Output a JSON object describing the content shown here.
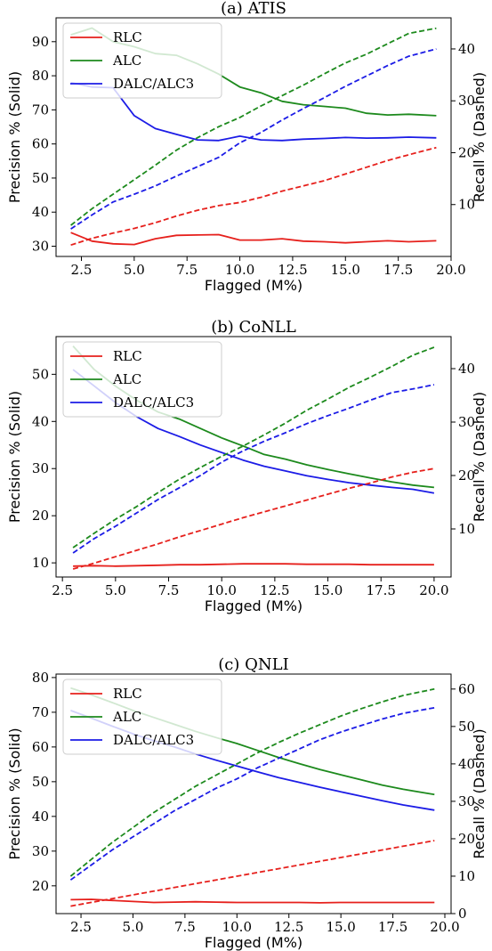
{
  "chart_data": [
    {
      "type": "line",
      "title": "(a) ATIS",
      "xlabel": "Flagged (M%)",
      "ylabel_left": "Precision % (Solid)",
      "ylabel_right": "Recall % (Dashed)",
      "xlim": [
        1.3,
        20.0
      ],
      "ylim_left": [
        27,
        97
      ],
      "ylim_right": [
        0,
        46
      ],
      "xticks": [
        "2.5",
        "5.0",
        "7.5",
        "10.0",
        "12.5",
        "15.0",
        "17.5",
        "20.0"
      ],
      "yticks_left": [
        "30",
        "40",
        "50",
        "60",
        "70",
        "80",
        "90"
      ],
      "yticks_right": [
        "10",
        "20",
        "30",
        "40"
      ],
      "legend": {
        "placement": "top-left",
        "entries": [
          "RLC",
          "ALC",
          "DALC/ALC3"
        ]
      },
      "colors": {
        "RLC": "#e6201c",
        "ALC": "#1d8a1d",
        "DALC/ALC3": "#1c1ce6"
      },
      "series": [
        {
          "name": "RLC",
          "style": "solid",
          "axis": "left",
          "x": [
            2,
            3,
            4,
            5,
            6,
            7,
            8,
            9,
            10,
            11,
            12,
            13,
            14,
            15,
            16,
            17,
            18,
            19.3
          ],
          "y": [
            34.0,
            31.5,
            30.7,
            30.5,
            32.2,
            33.2,
            33.3,
            33.4,
            31.8,
            31.8,
            32.2,
            31.5,
            31.3,
            31.0,
            31.3,
            31.6,
            31.3,
            31.6
          ]
        },
        {
          "name": "ALC",
          "style": "solid",
          "axis": "left",
          "x": [
            2,
            3,
            4,
            5,
            6,
            7,
            8,
            9,
            10,
            11,
            12,
            13,
            14,
            15,
            16,
            17,
            18,
            19.3
          ],
          "y": [
            92.0,
            94.0,
            90.0,
            88.5,
            86.5,
            86.0,
            83.5,
            80.5,
            76.7,
            75.0,
            72.5,
            71.5,
            71.0,
            70.5,
            69.0,
            68.5,
            68.7,
            68.3
          ]
        },
        {
          "name": "DALC/ALC3",
          "style": "solid",
          "axis": "left",
          "x": [
            2,
            3,
            4,
            5,
            6,
            7,
            8,
            9,
            10,
            11,
            12,
            13,
            14,
            15,
            16,
            17,
            18,
            19.3
          ],
          "y": [
            78.0,
            76.7,
            76.5,
            68.3,
            64.5,
            62.8,
            61.2,
            61.0,
            62.3,
            61.2,
            61.0,
            61.4,
            61.6,
            61.9,
            61.7,
            61.8,
            62.0,
            61.8
          ]
        },
        {
          "name": "RLC",
          "style": "dashed",
          "axis": "right",
          "x": [
            2,
            3,
            4,
            5,
            6,
            7,
            8,
            9,
            10,
            11,
            12,
            13,
            14,
            15,
            16,
            17,
            18,
            19.3
          ],
          "y": [
            2.2,
            3.5,
            4.5,
            5.4,
            6.5,
            7.8,
            8.9,
            9.8,
            10.4,
            11.4,
            12.6,
            13.6,
            14.6,
            15.9,
            17.2,
            18.5,
            19.6,
            21.0
          ]
        },
        {
          "name": "ALC",
          "style": "dashed",
          "axis": "right",
          "x": [
            2,
            3,
            4,
            5,
            6,
            7,
            8,
            9,
            10,
            11,
            12,
            13,
            14,
            15,
            16,
            17,
            18,
            19.3
          ],
          "y": [
            6.0,
            9.2,
            12.0,
            14.8,
            17.6,
            20.5,
            22.9,
            25.0,
            26.8,
            29.0,
            31.0,
            33.0,
            35.2,
            37.3,
            39.0,
            41.0,
            43.0,
            44.0
          ]
        },
        {
          "name": "DALC/ALC3",
          "style": "dashed",
          "axis": "right",
          "x": [
            2,
            3,
            4,
            5,
            6,
            7,
            8,
            9,
            10,
            11,
            12,
            13,
            14,
            15,
            16,
            17,
            18,
            19.3
          ],
          "y": [
            5.3,
            8.0,
            10.5,
            12.0,
            13.6,
            15.5,
            17.3,
            19.1,
            21.9,
            23.9,
            26.3,
            28.5,
            30.6,
            32.8,
            34.8,
            36.8,
            38.6,
            40.0
          ]
        }
      ]
    },
    {
      "type": "line",
      "title": "(b) CoNLL",
      "xlabel": "Flagged (M%)",
      "ylabel_left": "Precision % (Solid)",
      "ylabel_right": "Recall % (Dashed)",
      "xlim": [
        2.2,
        20.8
      ],
      "ylim_left": [
        7,
        58
      ],
      "ylim_right": [
        1,
        46
      ],
      "xticks": [
        "2.5",
        "5.0",
        "7.5",
        "10.0",
        "12.5",
        "15.0",
        "17.5",
        "20.0"
      ],
      "yticks_left": [
        "10",
        "20",
        "30",
        "40",
        "50"
      ],
      "yticks_right": [
        "10",
        "20",
        "30",
        "40"
      ],
      "legend": {
        "placement": "top-left",
        "entries": [
          "RLC",
          "ALC",
          "DALC/ALC3"
        ]
      },
      "colors": {
        "RLC": "#e6201c",
        "ALC": "#1d8a1d",
        "DALC/ALC3": "#1c1ce6"
      },
      "series": [
        {
          "name": "RLC",
          "style": "solid",
          "axis": "left",
          "x": [
            3,
            4,
            5,
            6,
            7,
            8,
            9,
            10,
            11,
            12,
            13,
            14,
            15,
            16,
            17,
            18,
            19,
            20
          ],
          "y": [
            9.3,
            9.4,
            9.3,
            9.4,
            9.5,
            9.6,
            9.6,
            9.7,
            9.8,
            9.8,
            9.8,
            9.7,
            9.7,
            9.7,
            9.6,
            9.6,
            9.6,
            9.6
          ]
        },
        {
          "name": "ALC",
          "style": "solid",
          "axis": "left",
          "x": [
            3,
            4,
            5,
            6,
            7,
            8,
            9,
            10,
            11,
            12,
            13,
            14,
            15,
            16,
            17,
            18,
            19,
            20
          ],
          "y": [
            56.0,
            51.0,
            47.5,
            44.5,
            42.0,
            40.5,
            38.5,
            36.5,
            34.8,
            33.0,
            32.0,
            30.8,
            29.8,
            28.9,
            28.0,
            27.2,
            26.5,
            26.0
          ]
        },
        {
          "name": "DALC/ALC3",
          "style": "solid",
          "axis": "left",
          "x": [
            3,
            4,
            5,
            6,
            7,
            8,
            9,
            10,
            11,
            12,
            13,
            14,
            15,
            16,
            17,
            18,
            19,
            20
          ],
          "y": [
            51.0,
            47.5,
            44.0,
            41.0,
            38.5,
            36.8,
            35.0,
            33.4,
            31.8,
            30.5,
            29.5,
            28.5,
            27.7,
            27.0,
            26.5,
            26.0,
            25.6,
            24.8
          ]
        },
        {
          "name": "RLC",
          "style": "dashed",
          "axis": "right",
          "x": [
            3,
            4,
            5,
            6,
            7,
            8,
            9,
            10,
            11,
            12,
            13,
            14,
            15,
            16,
            17,
            18,
            19,
            20
          ],
          "y": [
            2.5,
            3.6,
            4.8,
            6.0,
            7.2,
            8.5,
            9.7,
            10.9,
            12.1,
            13.2,
            14.3,
            15.4,
            16.5,
            17.6,
            18.6,
            19.7,
            20.6,
            21.3
          ]
        },
        {
          "name": "ALC",
          "style": "dashed",
          "axis": "right",
          "x": [
            3,
            4,
            5,
            6,
            7,
            8,
            9,
            10,
            11,
            12,
            13,
            14,
            15,
            16,
            17,
            18,
            19,
            20
          ],
          "y": [
            6.5,
            9.2,
            11.8,
            14.2,
            16.8,
            19.3,
            21.5,
            23.6,
            25.5,
            27.6,
            29.8,
            32.2,
            34.3,
            36.5,
            38.4,
            40.4,
            42.5,
            44.0
          ]
        },
        {
          "name": "DALC/ALC3",
          "style": "dashed",
          "axis": "right",
          "x": [
            3,
            4,
            5,
            6,
            7,
            8,
            9,
            10,
            11,
            12,
            13,
            14,
            15,
            16,
            17,
            18,
            19,
            20
          ],
          "y": [
            5.5,
            8.2,
            10.5,
            13.0,
            15.5,
            17.7,
            20.0,
            22.5,
            24.6,
            26.4,
            28.0,
            29.7,
            31.2,
            32.6,
            34.1,
            35.5,
            36.2,
            37.0
          ]
        }
      ]
    },
    {
      "type": "line",
      "title": "(c) QNLI",
      "xlabel": "Flagged (M%)",
      "ylabel_left": "Precision % (Solid)",
      "ylabel_right": "Recall % (Dashed)",
      "xlim": [
        1.3,
        20.3
      ],
      "ylim_left": [
        12,
        81
      ],
      "ylim_right": [
        0,
        64
      ],
      "xticks": [
        "2.5",
        "5.0",
        "7.5",
        "10.0",
        "12.5",
        "15.0",
        "17.5",
        "20.0"
      ],
      "yticks_left": [
        "20",
        "30",
        "40",
        "50",
        "60",
        "70",
        "80"
      ],
      "yticks_right": [
        "0",
        "10",
        "20",
        "30",
        "40",
        "50",
        "60"
      ],
      "legend": {
        "placement": "top-left",
        "entries": [
          "RLC",
          "ALC",
          "DALC/ALC3"
        ]
      },
      "colors": {
        "RLC": "#e6201c",
        "ALC": "#1d8a1d",
        "DALC/ALC3": "#1c1ce6"
      },
      "series": [
        {
          "name": "RLC",
          "style": "solid",
          "axis": "left",
          "x": [
            2,
            3,
            4,
            5,
            6,
            7,
            8,
            9,
            10,
            11,
            12,
            13,
            14,
            15,
            16,
            17,
            18,
            19.5
          ],
          "y": [
            16.0,
            16.1,
            15.8,
            15.5,
            15.2,
            15.3,
            15.4,
            15.3,
            15.2,
            15.2,
            15.2,
            15.2,
            15.1,
            15.2,
            15.2,
            15.2,
            15.2,
            15.2
          ]
        },
        {
          "name": "ALC",
          "style": "solid",
          "axis": "left",
          "x": [
            2,
            3,
            4,
            5,
            6,
            7,
            8,
            9,
            10,
            11,
            12,
            13,
            14,
            15,
            16,
            17,
            18,
            19.5
          ],
          "y": [
            77.0,
            75.0,
            72.8,
            70.5,
            68.5,
            66.5,
            64.5,
            62.7,
            61.0,
            59.0,
            57.0,
            55.2,
            53.5,
            52.0,
            50.5,
            49.0,
            47.8,
            46.3
          ]
        },
        {
          "name": "DALC/ALC3",
          "style": "solid",
          "axis": "left",
          "x": [
            2,
            3,
            4,
            5,
            6,
            7,
            8,
            9,
            10,
            11,
            12,
            13,
            14,
            15,
            16,
            17,
            18,
            19.5
          ],
          "y": [
            70.5,
            68.3,
            66.0,
            63.8,
            61.8,
            60.0,
            58.0,
            56.2,
            54.5,
            52.8,
            51.2,
            49.8,
            48.4,
            47.1,
            45.8,
            44.5,
            43.3,
            41.8
          ]
        },
        {
          "name": "RLC",
          "style": "dashed",
          "axis": "right",
          "x": [
            2,
            3,
            4,
            5,
            6,
            7,
            8,
            9,
            10,
            11,
            12,
            13,
            14,
            15,
            16,
            17,
            18,
            19.5
          ],
          "y": [
            2.0,
            3.0,
            4.0,
            5.0,
            6.0,
            7.0,
            8.0,
            9.0,
            10.0,
            11.0,
            12.0,
            13.0,
            14.0,
            15.0,
            16.0,
            17.0,
            18.0,
            19.5
          ]
        },
        {
          "name": "ALC",
          "style": "dashed",
          "axis": "right",
          "x": [
            2,
            3,
            4,
            5,
            6,
            7,
            8,
            9,
            10,
            11,
            12,
            13,
            14,
            15,
            16,
            17,
            18,
            19.5
          ],
          "y": [
            10.0,
            14.5,
            19.0,
            23.0,
            27.0,
            30.5,
            34.0,
            37.0,
            40.0,
            43.0,
            45.7,
            48.2,
            50.5,
            52.8,
            54.8,
            56.6,
            58.3,
            60.0
          ]
        },
        {
          "name": "DALC/ALC3",
          "style": "dashed",
          "axis": "right",
          "x": [
            2,
            3,
            4,
            5,
            6,
            7,
            8,
            9,
            10,
            11,
            12,
            13,
            14,
            15,
            16,
            17,
            18,
            19.5
          ],
          "y": [
            9.0,
            13.0,
            17.0,
            20.5,
            24.0,
            27.5,
            30.5,
            33.5,
            36.0,
            39.0,
            41.5,
            44.0,
            46.5,
            48.5,
            50.3,
            52.0,
            53.5,
            55.0
          ]
        }
      ]
    }
  ]
}
